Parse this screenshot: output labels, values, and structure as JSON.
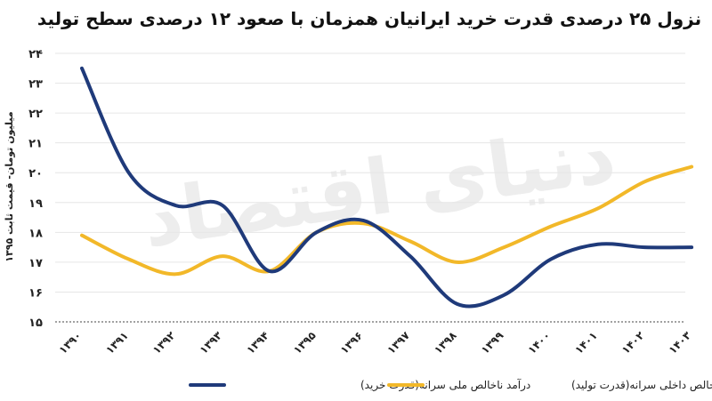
{
  "chart_data": {
    "type": "line",
    "title": "نزول ۲۵ درصدی  قدرت خرید ایرانیان همزمان با صعود ۱۲ درصدی سطح تولید",
    "ylabel": "میلیون تومان- قیمت ثابت ۱۳۹۵",
    "xlabel": "",
    "categories": [
      "۱۳۹۰",
      "۱۳۹۱",
      "۱۳۹۲",
      "۱۳۹۳",
      "۱۳۹۴",
      "۱۳۹۵",
      "۱۳۹۶",
      "۱۳۹۷",
      "۱۳۹۸",
      "۱۳۹۹",
      "۱۴۰۰",
      "۱۴۰۱",
      "۱۴۰۲",
      "۱۴۰۳"
    ],
    "y_ticks": [
      {
        "value": 15,
        "label": "۱۵"
      },
      {
        "value": 16,
        "label": "۱۶"
      },
      {
        "value": 17,
        "label": "۱۷"
      },
      {
        "value": 18,
        "label": "۱۸"
      },
      {
        "value": 19,
        "label": "۱۹"
      },
      {
        "value": 20,
        "label": "۲۰"
      },
      {
        "value": 21,
        "label": "۲۱"
      },
      {
        "value": 22,
        "label": "۲۲"
      },
      {
        "value": 23,
        "label": "۲۳"
      },
      {
        "value": 24,
        "label": "۲۴"
      }
    ],
    "ylim": [
      15,
      24
    ],
    "grid": true,
    "legend_position": "bottom",
    "series": [
      {
        "name": "درآمد ناخالص ملی سرانه(قدرت خرید)",
        "color": "#1f3a7a",
        "values": [
          23.5,
          20.0,
          18.9,
          18.9,
          16.7,
          18.0,
          18.4,
          17.2,
          15.6,
          15.9,
          17.1,
          17.6,
          17.5,
          17.5
        ]
      },
      {
        "name": "تولید ناخالص داخلی سرانه(قدرت تولید)",
        "color": "#f2b829",
        "values": [
          17.9,
          17.1,
          16.6,
          17.2,
          16.7,
          18.0,
          18.3,
          17.7,
          17.0,
          17.5,
          18.2,
          18.8,
          19.7,
          20.2
        ]
      }
    ]
  },
  "watermark": "دنیای اقتصاد"
}
